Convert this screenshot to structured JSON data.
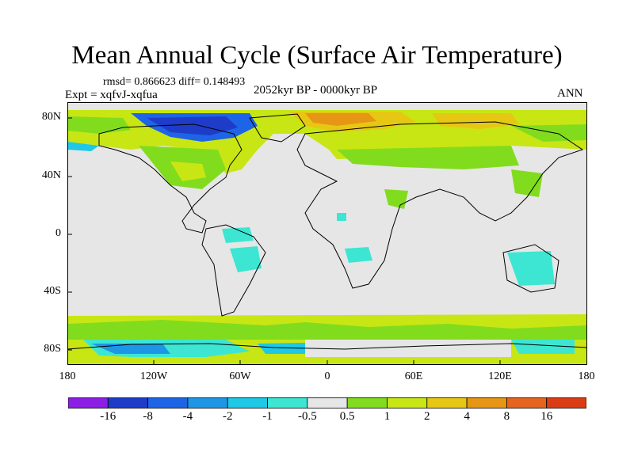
{
  "title": "Mean Annual Cycle (Surface Air Temperature)",
  "stats": "rmsd= 0.866623 diff= 0.148493",
  "expt": "Expt = xqfvJ-xqfua",
  "period": "2052kyr BP - 0000kyr BP",
  "season": "ANN",
  "lat_labels": [
    "80N",
    "40N",
    "0",
    "40S",
    "80S"
  ],
  "lon_labels": [
    "180",
    "120W",
    "60W",
    "0",
    "60E",
    "120E",
    "180"
  ],
  "colorbar": {
    "labels": [
      "-16",
      "-8",
      "-4",
      "-2",
      "-1",
      "-0.5",
      "0.5",
      "1",
      "2",
      "4",
      "8",
      "16"
    ],
    "colors": [
      "#8c1ee6",
      "#1e3cc8",
      "#1e64e6",
      "#1e96e6",
      "#1ec8e6",
      "#3ce6d2",
      "#e6e6e6",
      "#82dc1e",
      "#c8e614",
      "#e6c814",
      "#e69614",
      "#e6641e",
      "#dc3c14"
    ]
  },
  "colors": {
    "ocean": "#e6e6e6",
    "coast": "#000000"
  }
}
